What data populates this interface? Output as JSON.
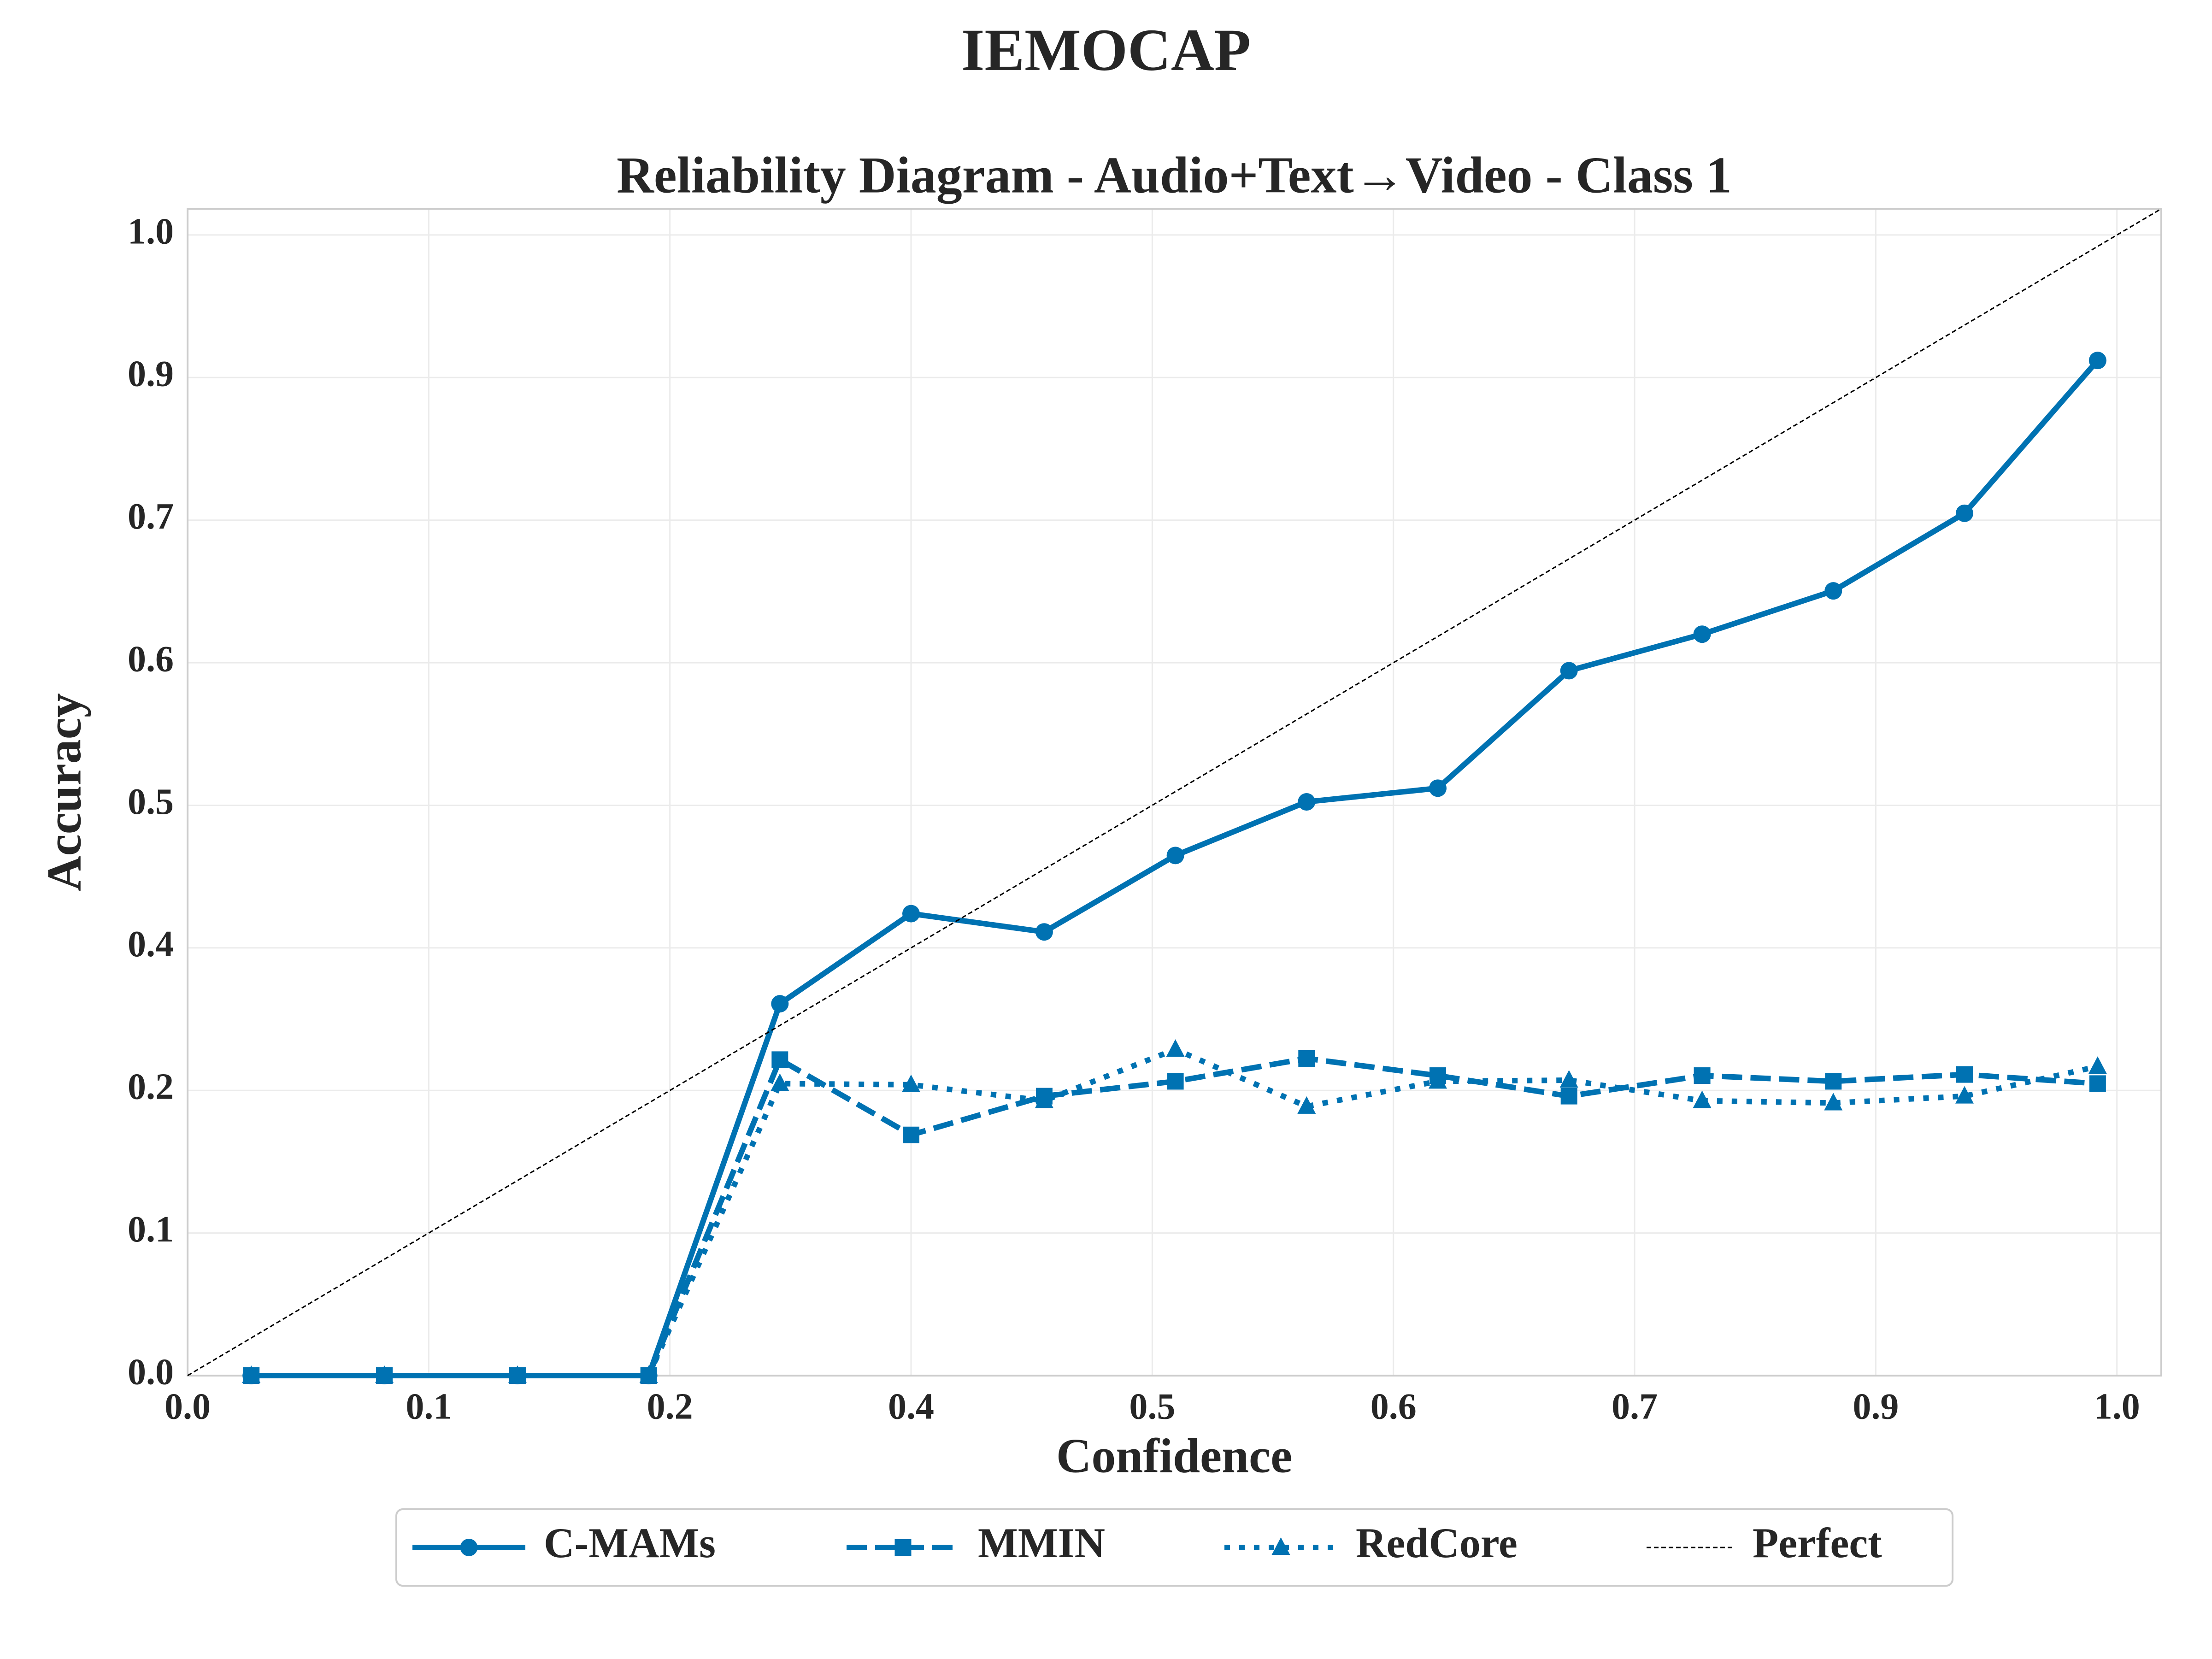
{
  "chart_data": {
    "type": "line",
    "title": "IEMOCAP",
    "subtitle": "Reliability Diagram - Audio+Text→Video - Class 1",
    "x_label": "Confidence",
    "y_label": "Accuracy",
    "x": [
      0.033,
      0.102,
      0.171,
      0.239,
      0.307,
      0.375,
      0.444,
      0.512,
      0.58,
      0.648,
      0.716,
      0.785,
      0.853,
      0.921,
      0.99
    ],
    "series": [
      {
        "name": "C-MAMs",
        "color": "#0072b2",
        "linestyle": "solid",
        "marker": "circle",
        "values": [
          0,
          0,
          0,
          0,
          0.326,
          0.405,
          0.389,
          0.456,
          0.503,
          0.515,
          0.618,
          0.65,
          0.688,
          0.756,
          0.89
        ]
      },
      {
        "name": "MMIN",
        "color": "#0072b2",
        "linestyle": "dashed",
        "marker": "square",
        "values": [
          0,
          0,
          0,
          0,
          0.277,
          0.211,
          0.245,
          0.258,
          0.278,
          0.263,
          0.245,
          0.263,
          0.258,
          0.264,
          0.256
        ]
      },
      {
        "name": "RedCore",
        "color": "#0072b2",
        "linestyle": "dotted",
        "marker": "triangle",
        "values": [
          0,
          0,
          0,
          0,
          0.256,
          0.255,
          0.241,
          0.286,
          0.236,
          0.258,
          0.259,
          0.241,
          0.239,
          0.245,
          0.271
        ]
      },
      {
        "name": "Perfect",
        "color": "#000000",
        "linestyle": "thin-dashed",
        "marker": "none",
        "x": [
          0,
          1.023
        ],
        "values": [
          0,
          1.023
        ]
      }
    ],
    "xlim": [
      0,
      1.023
    ],
    "ylim": [
      0,
      1.023
    ],
    "xticks": [
      {
        "value": 0,
        "label": "0.0"
      },
      {
        "value": 0.125,
        "label": "0.1"
      },
      {
        "value": 0.25,
        "label": "0.2"
      },
      {
        "value": 0.375,
        "label": "0.4"
      },
      {
        "value": 0.5,
        "label": "0.5"
      },
      {
        "value": 0.625,
        "label": "0.6"
      },
      {
        "value": 0.75,
        "label": "0.7"
      },
      {
        "value": 0.875,
        "label": "0.9"
      },
      {
        "value": 1,
        "label": "1.0"
      }
    ],
    "yticks": [
      {
        "value": 0,
        "label": "0.0"
      },
      {
        "value": 0.125,
        "label": "0.1"
      },
      {
        "value": 0.25,
        "label": "0.2"
      },
      {
        "value": 0.375,
        "label": "0.4"
      },
      {
        "value": 0.5,
        "label": "0.5"
      },
      {
        "value": 0.625,
        "label": "0.6"
      },
      {
        "value": 0.75,
        "label": "0.7"
      },
      {
        "value": 0.875,
        "label": "0.9"
      },
      {
        "value": 1,
        "label": "1.0"
      }
    ],
    "grid": true,
    "legend": "bottom"
  }
}
